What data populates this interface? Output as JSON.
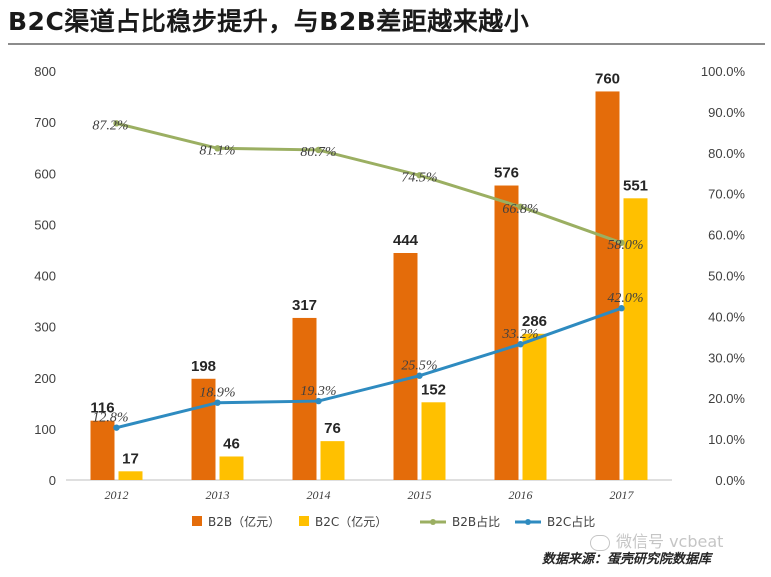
{
  "header": {
    "title": "B2C渠道占比稳步提升，与B2B差距越来越小"
  },
  "footer": {
    "source": "数据来源：蛋壳研究院数据库",
    "watermark": "微信号 vcbeat"
  },
  "colors": {
    "b2b": "#E46C0A",
    "b2c": "#FFC000",
    "b2b_share": "#9BAF62",
    "b2c_share": "#2E8BC0"
  },
  "chart_data": {
    "type": "bar",
    "title": "B2C渠道占比稳步提升，与B2B差距越来越小",
    "categories": [
      "2012",
      "2013",
      "2014",
      "2015",
      "2016",
      "2017"
    ],
    "series": [
      {
        "name": "B2B（亿元）",
        "type": "bar",
        "axis": "left",
        "values": [
          116,
          198,
          317,
          444,
          576,
          760
        ],
        "labels": [
          "116",
          "198",
          "317",
          "444",
          "576",
          "760"
        ]
      },
      {
        "name": "B2C（亿元）",
        "type": "bar",
        "axis": "left",
        "values": [
          17,
          46,
          76,
          152,
          286,
          551
        ],
        "labels": [
          "17",
          "46",
          "76",
          "152",
          "286",
          "551"
        ]
      },
      {
        "name": "B2B占比",
        "type": "line",
        "axis": "right",
        "values": [
          87.2,
          81.1,
          80.7,
          74.5,
          66.8,
          58.0
        ],
        "labels": [
          "87.2%",
          "81.1%",
          "80.7%",
          "74.5%",
          "66.8%",
          "58.0%"
        ]
      },
      {
        "name": "B2C占比",
        "type": "line",
        "axis": "right",
        "values": [
          12.8,
          18.9,
          19.3,
          25.5,
          33.2,
          42.0
        ],
        "labels": [
          "12.8%",
          "18.9%",
          "19.3%",
          "25.5%",
          "33.2%",
          "42.0%"
        ]
      }
    ],
    "ylim_left": [
      0,
      800
    ],
    "yticks_left": [
      "0",
      "100",
      "200",
      "300",
      "400",
      "500",
      "600",
      "700",
      "800"
    ],
    "ylim_right": [
      0,
      100
    ],
    "yticks_right": [
      "0.0%",
      "10.0%",
      "20.0%",
      "30.0%",
      "40.0%",
      "50.0%",
      "60.0%",
      "70.0%",
      "80.0%",
      "90.0%",
      "100.0%"
    ],
    "xlabel": "",
    "ylabel": "",
    "grid": false,
    "legend_position": "bottom"
  }
}
